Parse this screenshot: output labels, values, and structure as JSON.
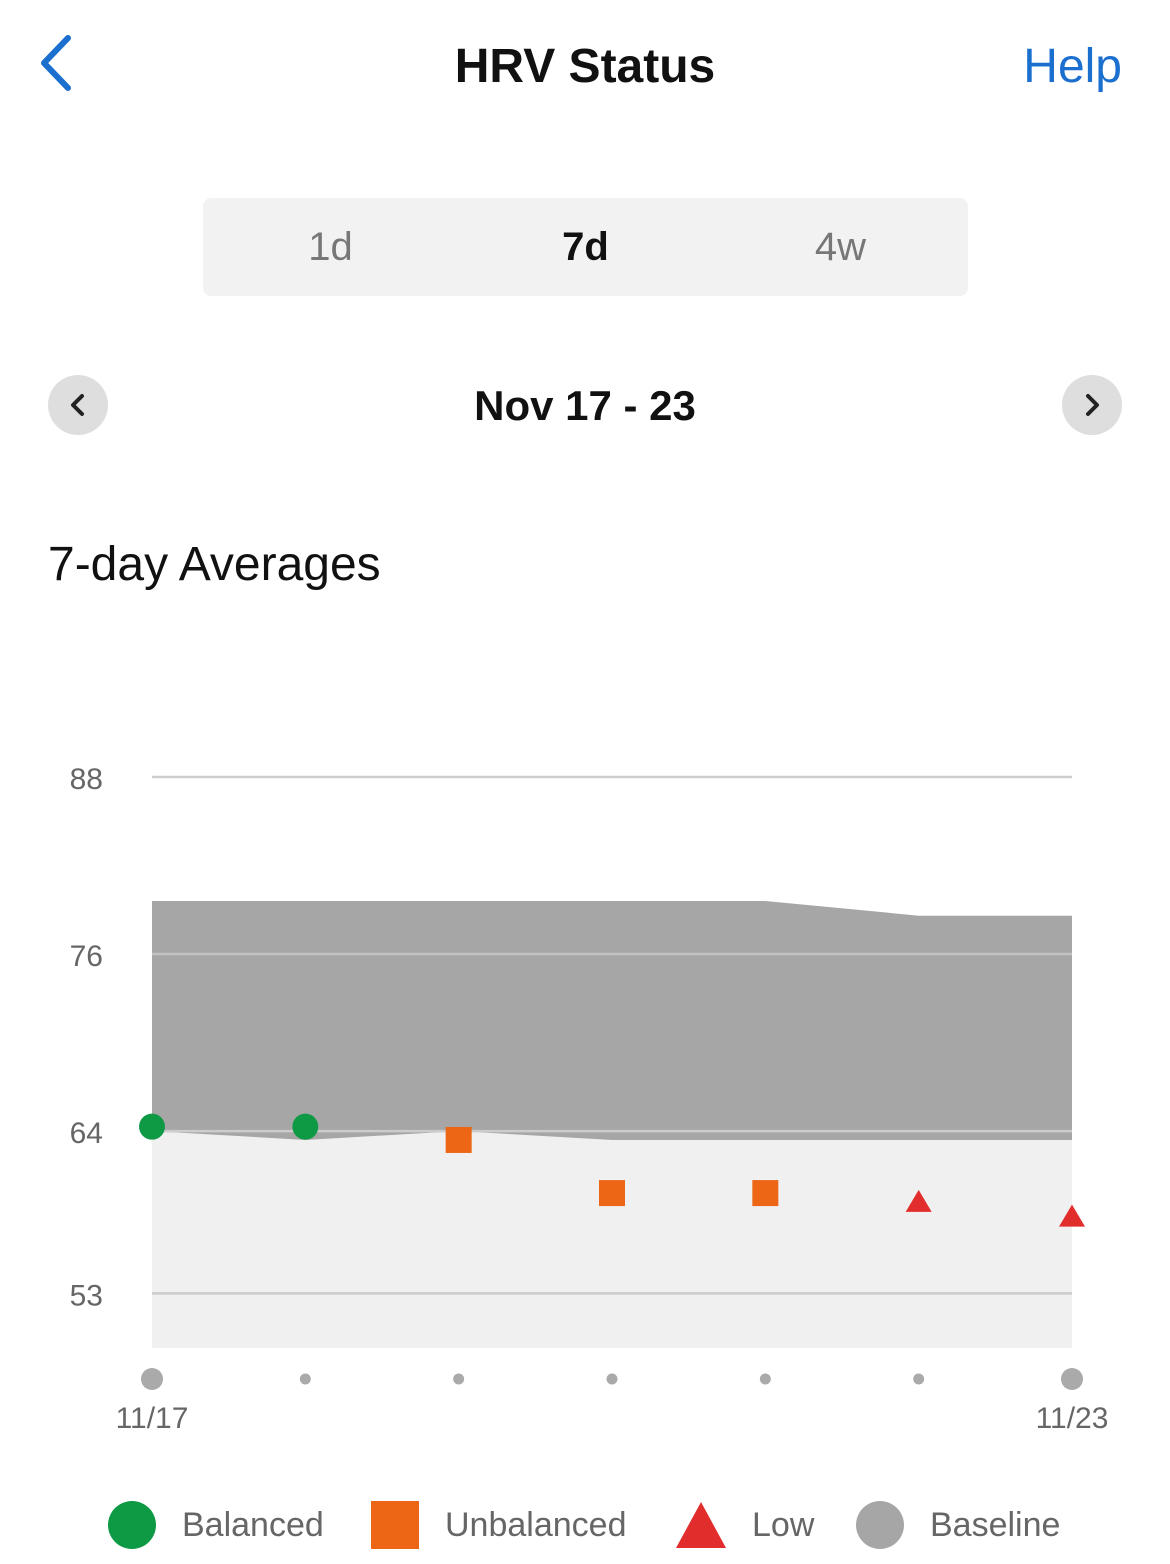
{
  "header": {
    "title": "HRV Status",
    "help_label": "Help"
  },
  "tabs": [
    {
      "label": "1d",
      "active": false
    },
    {
      "label": "7d",
      "active": true
    },
    {
      "label": "4w",
      "active": false
    }
  ],
  "date_nav": {
    "range": "Nov 17 - 23"
  },
  "section_title": "7-day Averages",
  "colors": {
    "accent": "#1a6fcf",
    "balanced": "#0e9a45",
    "unbalanced": "#ec6615",
    "low": "#e22d2d",
    "baseline": "#a6a6a6",
    "below_band": "#f0f0f0"
  },
  "chart_data": {
    "type": "scatter",
    "title": "",
    "xlabel": "",
    "ylabel": "",
    "x": [
      "11/17",
      "11/18",
      "11/19",
      "11/20",
      "11/21",
      "11/22",
      "11/23"
    ],
    "x_tick_labels": [
      "11/17",
      "",
      "",
      "",
      "",
      "",
      "11/23"
    ],
    "y_ticks": [
      53,
      64,
      76,
      88
    ],
    "ylim": [
      49.3,
      88
    ],
    "grid": true,
    "legend_position": "bottom",
    "baseline_band": {
      "name": "Baseline",
      "lower": [
        64,
        63.4,
        64,
        63.4,
        63.4,
        63.4,
        63.4
      ],
      "upper": [
        79.6,
        79.6,
        79.6,
        79.6,
        79.6,
        78.6,
        78.6
      ]
    },
    "series": [
      {
        "name": "7-day average",
        "values": [
          64.3,
          64.3,
          63.4,
          59.8,
          59.8,
          59.2,
          58.2
        ]
      }
    ],
    "status": [
      "balanced",
      "balanced",
      "unbalanced",
      "unbalanced",
      "unbalanced",
      "low",
      "low"
    ],
    "legend": [
      {
        "label": "Balanced",
        "marker": "circle",
        "color": "#0e9a45"
      },
      {
        "label": "Unbalanced",
        "marker": "square",
        "color": "#ec6615"
      },
      {
        "label": "Low",
        "marker": "triangle",
        "color": "#e22d2d"
      },
      {
        "label": "Baseline",
        "marker": "circle",
        "color": "#a6a6a6"
      }
    ]
  }
}
